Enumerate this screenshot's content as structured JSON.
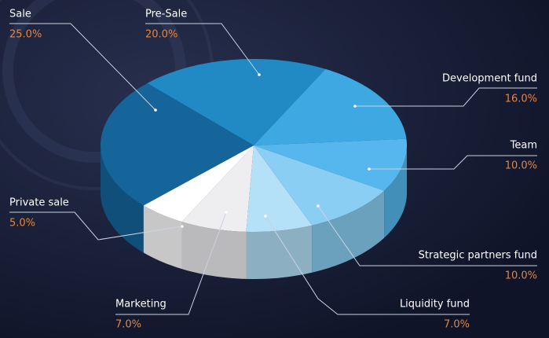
{
  "chart_data": {
    "type": "pie",
    "categories": [
      "Pre-Sale",
      "Development fund",
      "Team",
      "Strategic partners fund",
      "Liquidity fund",
      "Marketing",
      "Private sale",
      "Sale"
    ],
    "values": [
      20,
      16,
      10,
      10,
      7,
      7,
      5,
      25
    ],
    "value_labels": [
      "20.0%",
      "16.0%",
      "10.0%",
      "10.0%",
      "7.0%",
      "7.0%",
      "5.0%",
      "25.0%"
    ],
    "colors": [
      "#2189c4",
      "#3ea8e3",
      "#55b7ed",
      "#8bcef4",
      "#b4e0f8",
      "#eeeef1",
      "#ffffff",
      "#15659b"
    ]
  }
}
